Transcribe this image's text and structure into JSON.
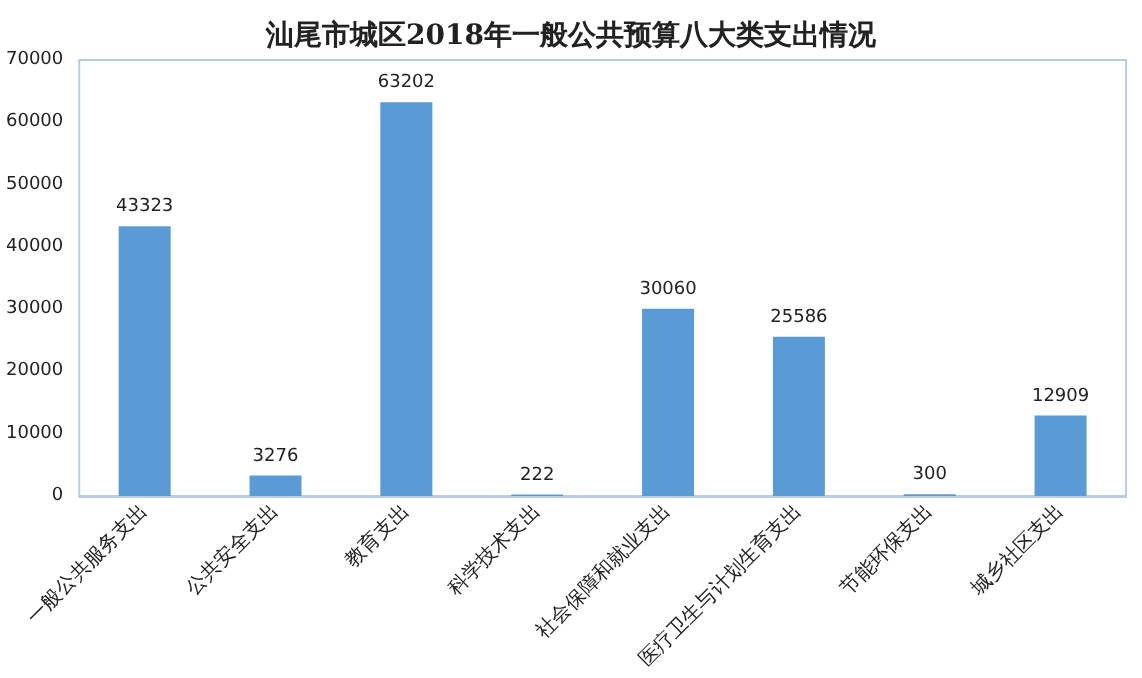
{
  "chart_data": {
    "type": "bar",
    "title": "汕尾市城区2018年一般公共预算八大类支出情况",
    "categories": [
      "一般公共服务支出",
      "公共安全支出",
      "教育支出",
      "科学技术支出",
      "社会保障和就业支出",
      "医疗卫生与计划生育支出",
      "节能环保支出",
      "城乡社区支出"
    ],
    "values": [
      43323,
      3276,
      63202,
      222,
      30060,
      25586,
      300,
      12909
    ],
    "color": "#5b9bd5",
    "ylim": [
      0,
      70000
    ],
    "yticks": [
      0,
      10000,
      20000,
      30000,
      40000,
      50000,
      60000,
      70000
    ],
    "grid": false,
    "data_labels": true
  }
}
